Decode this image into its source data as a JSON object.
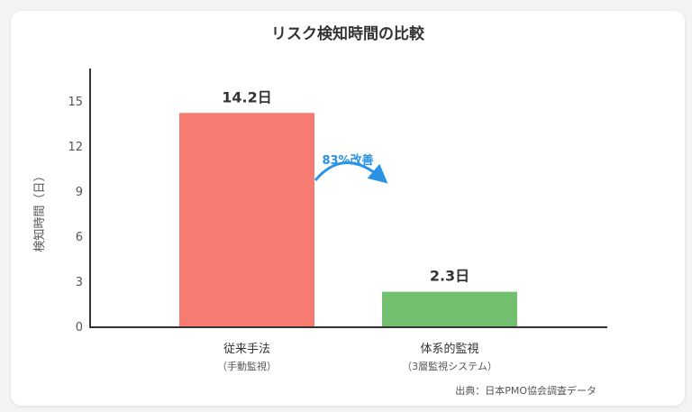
{
  "chart_data": {
    "type": "bar",
    "title": "リスク検知時間の比較",
    "ylabel": "検知時間（日）",
    "xlabel": "",
    "ylim": [
      0,
      17
    ],
    "yticks": [
      0,
      3,
      6,
      9,
      12,
      15
    ],
    "grid": false,
    "categories": [
      "従来手法",
      "体系的監視"
    ],
    "category_subtitles": [
      "（手動監視）",
      "（3層監視システム）"
    ],
    "values": [
      14.2,
      2.3
    ],
    "value_labels": [
      "14.2日",
      "2.3日"
    ],
    "colors": [
      "#f67c72",
      "#71bf6f"
    ],
    "annotation": {
      "text": "83%改善",
      "color": "#2a93e6"
    },
    "source": "出典：日本PMO協会調査データ"
  }
}
